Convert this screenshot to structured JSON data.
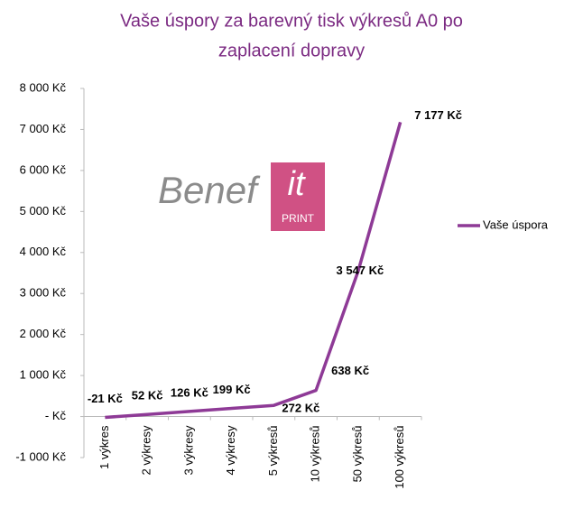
{
  "chart_data": {
    "type": "line",
    "title": [
      "Vaše úspory za barevný tisk výkresů A0 po",
      "zaplacení dopravy"
    ],
    "logo_text": "Benef",
    "logo_badge": "it",
    "logo_subtext": "PRINT",
    "categories": [
      "1 výkres",
      "2 výkresy",
      "3 výkresy",
      "4 výkresy",
      "5 výkresů",
      "10 výkresů",
      "50 výkresů",
      "100 výkresů"
    ],
    "series": [
      {
        "name": "Vaše úspora",
        "color": "#8e3a96",
        "values": [
          -21,
          52,
          126,
          199,
          272,
          638,
          3547,
          7177
        ],
        "value_labels": [
          "-21 Kč",
          "52 Kč",
          "126 Kč",
          "199 Kč",
          "272 Kč",
          "638 Kč",
          "3 547 Kč",
          "7 177 Kč"
        ]
      }
    ],
    "ylim": [
      -1000,
      8000
    ],
    "yticks": [
      {
        "value": -1000,
        "label": "-1 000 Kč"
      },
      {
        "value": 0,
        "label": "- Kč"
      },
      {
        "value": 1000,
        "label": "1 000 Kč"
      },
      {
        "value": 2000,
        "label": "2 000 Kč"
      },
      {
        "value": 3000,
        "label": "3 000 Kč"
      },
      {
        "value": 4000,
        "label": "4 000 Kč"
      },
      {
        "value": 5000,
        "label": "5 000 Kč"
      },
      {
        "value": 6000,
        "label": "6 000 Kč"
      },
      {
        "value": 7000,
        "label": "7 000 Kč"
      },
      {
        "value": 8000,
        "label": "8 000 Kč"
      }
    ],
    "legend": "right",
    "grid": false
  }
}
